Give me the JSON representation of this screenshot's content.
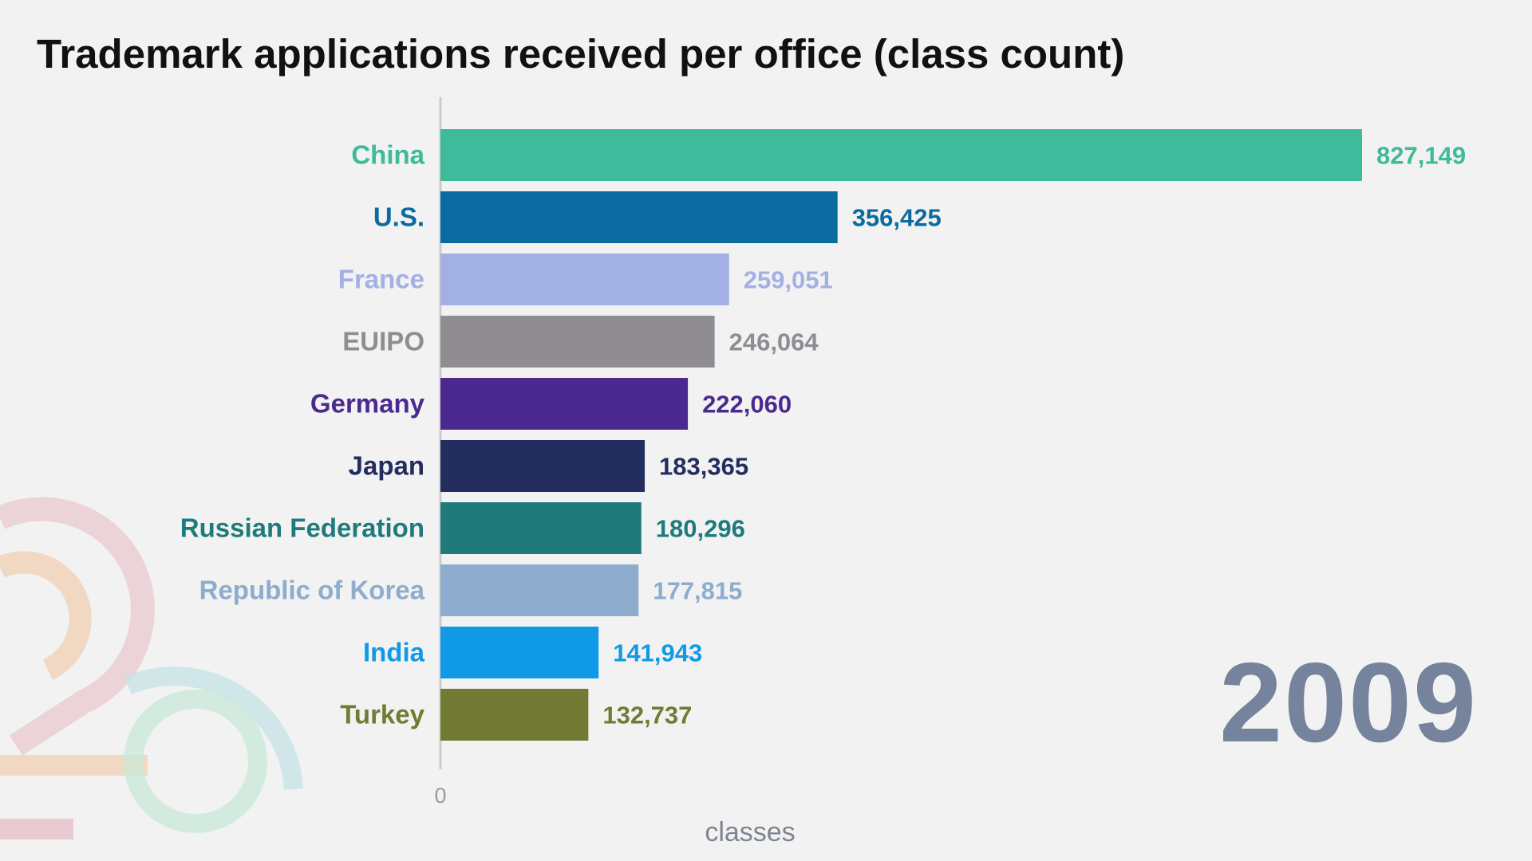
{
  "chart_data": {
    "type": "bar",
    "orientation": "horizontal",
    "title": "Trademark applications received per office (class count)",
    "xlabel": "classes",
    "ylabel": "",
    "xlim": [
      0,
      827149
    ],
    "x_ticks": [
      "0"
    ],
    "grid": false,
    "legend": "none",
    "year": "2009",
    "categories": [
      "China",
      "U.S.",
      "France",
      "EUIPO",
      "Germany",
      "Japan",
      "Russian Federation",
      "Republic of Korea",
      "India",
      "Turkey"
    ],
    "values": [
      827149,
      356425,
      259051,
      246064,
      222060,
      183365,
      180296,
      177815,
      141943,
      132737
    ],
    "value_labels": [
      "827,149",
      "356,425",
      "259,051",
      "246,064",
      "222,060",
      "183,365",
      "180,296",
      "177,815",
      "141,943",
      "132,737"
    ],
    "colors": [
      "#3dbb9a",
      "#0b6ba0",
      "#a3b0e4",
      "#8f8d92",
      "#4b2a90",
      "#232d5e",
      "#1f7a7c",
      "#8dacce",
      "#109ae6",
      "#737a33"
    ]
  },
  "colors": {
    "background": "#f2f2f2",
    "year": "#75849c",
    "axis": "#cccccc"
  }
}
